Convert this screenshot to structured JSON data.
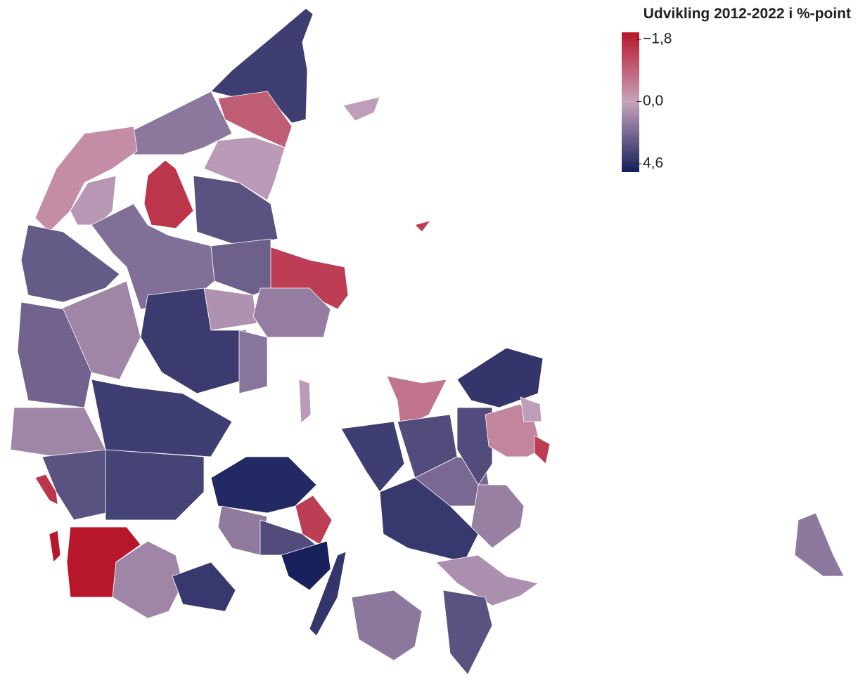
{
  "chart_data": {
    "type": "choropleth",
    "legend_title": "Udvikling 2012-2022 i %-point",
    "colorbar": {
      "ticks": [
        {
          "value": -1.8,
          "label": "−1,8"
        },
        {
          "value": 0,
          "label": "0,0"
        },
        {
          "value": 4.6,
          "label": "4,6"
        }
      ],
      "colors": [
        "#b8162b",
        "#c6a3bd",
        "#141e5a"
      ]
    },
    "values": [
      3.5,
      -0.9,
      1.5,
      -0.3,
      0.3,
      -1.4,
      0.4,
      2.8,
      1.8,
      2.5,
      -1.3,
      2.3,
      0.6,
      1.3,
      3.6,
      1.0,
      2.2,
      1.6,
      1.0,
      3.5,
      2.8,
      3.3,
      -1.8,
      1.0,
      3.7,
      -1.4,
      -1.8,
      0.2,
      -1.3,
      0.3,
      4.2,
      -1.3,
      1.4,
      3.0,
      4.5,
      3.8,
      -0.6,
      3.5,
      3.0,
      2.0,
      3.7,
      1.2,
      3.8,
      3.0,
      -0.4,
      0.2,
      -1.3,
      0.7,
      1.5,
      2.8,
      1.5
    ]
  }
}
